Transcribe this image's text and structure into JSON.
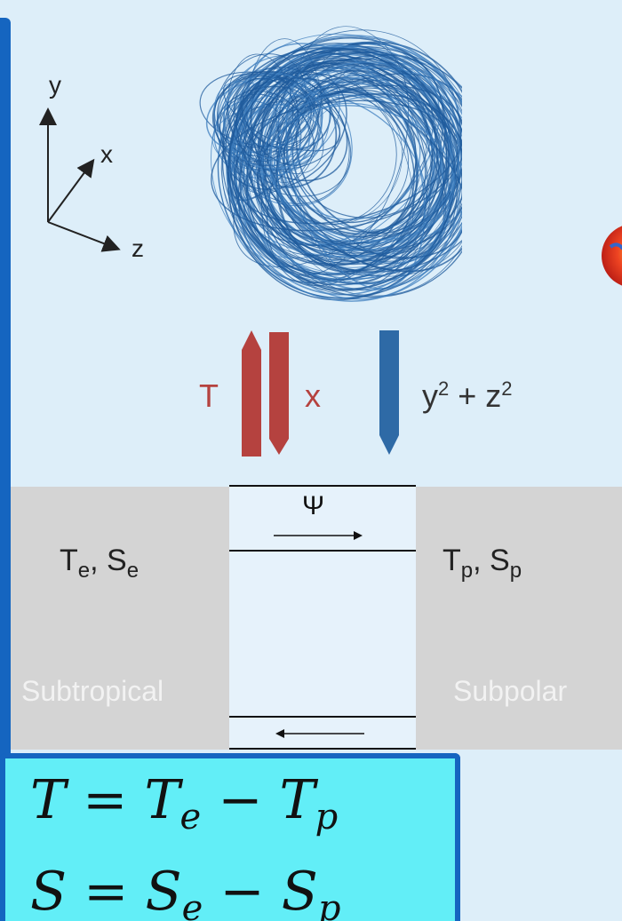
{
  "axes": {
    "y_label": "y",
    "x_label": "x",
    "z_label": "z"
  },
  "legend": {
    "t_label": "T",
    "x_label": "x",
    "yz_base1": "y",
    "yz_exp1": "2",
    "yz_plus": " + z",
    "yz_exp2": "2",
    "colors": {
      "red": "#b5423f",
      "blue": "#2e6aa6"
    }
  },
  "boxes": {
    "left": {
      "title_main1": "T",
      "title_sub1": "e",
      "title_sep": ", S",
      "title_sub2": "e",
      "name": "Subtropical"
    },
    "right": {
      "title_main1": "T",
      "title_sub1": "p",
      "title_sep": ", S",
      "title_sub2": "p",
      "name": "Subpolar"
    }
  },
  "channel": {
    "psi_label": "Ψ"
  },
  "formulas": {
    "line1": {
      "lhs": "T = T",
      "sub1": "e",
      "mid": " − T",
      "sub2": "p"
    },
    "line2": {
      "lhs": "S = S",
      "sub1": "e",
      "mid": " − S",
      "sub2": "p"
    }
  },
  "colors": {
    "accent": "#1565c0",
    "background": "#ddeef9",
    "formula_bg": "#62eef7",
    "box_gray": "#d4d4d4"
  }
}
